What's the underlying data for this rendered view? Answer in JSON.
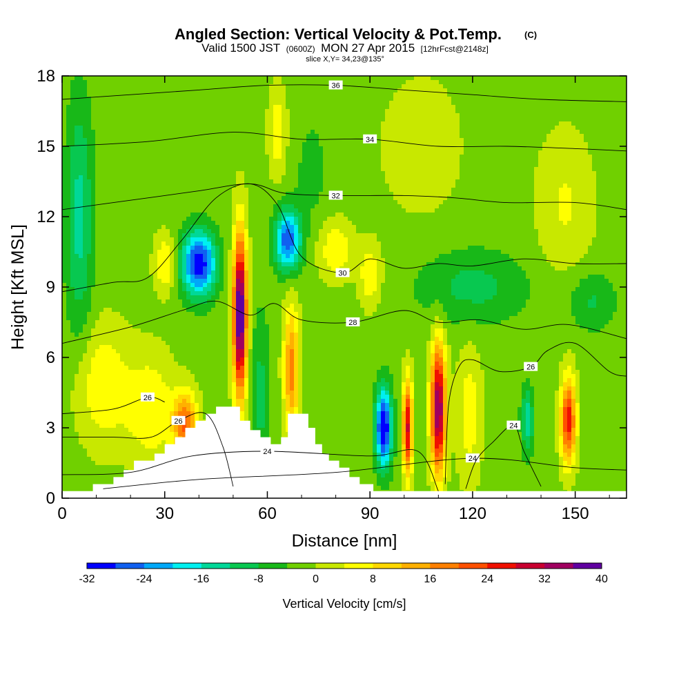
{
  "chart_data": {
    "type": "heatmap",
    "title": "Angled Section: Vertical Velocity & Pot.Temp.",
    "title_mark": "(C)",
    "subtitle_main": "Valid 1500 JST",
    "subtitle_utc": "(0600Z)",
    "subtitle_date": "MON 27 Apr 2015",
    "subtitle_fcst": "[12hrFcst@2148z]",
    "slice_label": "slice X,Y= 34,23@135°",
    "xlabel": "Distance [nm]",
    "ylabel": "Height [Kft MSL]",
    "xlim": [
      0,
      165
    ],
    "ylim": [
      0,
      18
    ],
    "xticks": [
      "0",
      "30",
      "60",
      "90",
      "120",
      "150"
    ],
    "yticks": [
      "0",
      "3",
      "6",
      "9",
      "12",
      "15",
      "18"
    ],
    "colorbar": {
      "label": "Vertical Velocity [cm/s]",
      "tick_labels": [
        "-32",
        "-24",
        "-16",
        "-8",
        "0",
        "8",
        "16",
        "24",
        "32",
        "40"
      ],
      "levels": [
        -32,
        -28,
        -24,
        -20,
        -16,
        -12,
        -8,
        -4,
        0,
        4,
        8,
        12,
        16,
        20,
        24,
        28,
        32,
        36,
        40
      ],
      "colors": [
        "#0000ff",
        "#1060f0",
        "#00a8f8",
        "#00f0f0",
        "#00d898",
        "#08c850",
        "#18b818",
        "#70d000",
        "#c8e800",
        "#ffff00",
        "#ffd800",
        "#ffb000",
        "#ff8000",
        "#ff5000",
        "#f01000",
        "#c80030",
        "#a00060",
        "#6000a0"
      ]
    },
    "theta_contours": [
      {
        "label": "24",
        "pts": [
          [
            12,
            0.4
          ],
          [
            40,
            0.8
          ],
          [
            80,
            1.1
          ],
          [
            120,
            1.7
          ],
          [
            150,
            1.3
          ],
          [
            165,
            1.2
          ]
        ]
      },
      {
        "label": "24",
        "pts": [
          [
            0,
            1.0
          ],
          [
            20,
            1.1
          ],
          [
            38,
            1.8
          ],
          [
            60,
            2.0
          ],
          [
            90,
            1.8
          ],
          [
            104,
            2.0
          ],
          [
            110,
            0.3
          ]
        ]
      },
      {
        "label": "24",
        "pts": [
          [
            118,
            0.4
          ],
          [
            121,
            1.6
          ],
          [
            126,
            2.4
          ],
          [
            132,
            3.1
          ],
          [
            135,
            2.0
          ],
          [
            140,
            0.5
          ]
        ]
      },
      {
        "label": "26",
        "pts": [
          [
            0,
            2.6
          ],
          [
            15,
            2.6
          ],
          [
            26,
            2.6
          ],
          [
            34,
            3.3
          ],
          [
            42,
            3.6
          ],
          [
            47,
            2.2
          ],
          [
            50,
            0.5
          ]
        ]
      },
      {
        "label": "26",
        "pts": [
          [
            112,
            0.6
          ],
          [
            113,
            4.0
          ],
          [
            116,
            5.6
          ],
          [
            120,
            5.9
          ],
          [
            128,
            5.4
          ],
          [
            137,
            5.6
          ],
          [
            142,
            6.3
          ],
          [
            150,
            6.6
          ],
          [
            160,
            5.4
          ],
          [
            165,
            5.2
          ]
        ]
      },
      {
        "label": "26",
        "pts": [
          [
            0,
            3.6
          ],
          [
            15,
            3.8
          ],
          [
            25,
            4.3
          ],
          [
            30,
            4.1
          ]
        ]
      },
      {
        "label": "28",
        "pts": [
          [
            0,
            6.6
          ],
          [
            20,
            7.3
          ],
          [
            35,
            8.0
          ],
          [
            45,
            8.4
          ],
          [
            55,
            7.8
          ],
          [
            62,
            8.3
          ],
          [
            70,
            7.6
          ],
          [
            85,
            7.5
          ],
          [
            100,
            8.0
          ],
          [
            110,
            7.5
          ],
          [
            122,
            7.6
          ],
          [
            135,
            7.2
          ],
          [
            148,
            7.4
          ],
          [
            165,
            6.8
          ]
        ]
      },
      {
        "label": "30",
        "pts": [
          [
            0,
            8.8
          ],
          [
            15,
            9.2
          ],
          [
            25,
            9.4
          ],
          [
            35,
            11.0
          ],
          [
            45,
            12.8
          ],
          [
            55,
            13.4
          ],
          [
            63,
            12.5
          ],
          [
            70,
            10.3
          ],
          [
            82,
            9.6
          ],
          [
            90,
            10.2
          ],
          [
            100,
            9.8
          ],
          [
            110,
            10.0
          ],
          [
            120,
            9.9
          ],
          [
            135,
            10.2
          ],
          [
            150,
            10.0
          ],
          [
            165,
            10.0
          ]
        ]
      },
      {
        "label": "32",
        "pts": [
          [
            0,
            12.3
          ],
          [
            20,
            12.7
          ],
          [
            40,
            13.1
          ],
          [
            55,
            13.4
          ],
          [
            65,
            13.0
          ],
          [
            80,
            12.9
          ],
          [
            100,
            12.9
          ],
          [
            115,
            12.8
          ],
          [
            130,
            12.6
          ],
          [
            150,
            12.6
          ],
          [
            165,
            12.3
          ]
        ]
      },
      {
        "label": "34",
        "pts": [
          [
            0,
            15.0
          ],
          [
            25,
            15.2
          ],
          [
            50,
            15.6
          ],
          [
            70,
            15.3
          ],
          [
            90,
            15.3
          ],
          [
            110,
            15.0
          ],
          [
            130,
            15.0
          ],
          [
            150,
            14.9
          ],
          [
            165,
            14.8
          ]
        ]
      },
      {
        "label": "36",
        "pts": [
          [
            0,
            17.0
          ],
          [
            20,
            17.2
          ],
          [
            40,
            17.4
          ],
          [
            60,
            17.6
          ],
          [
            80,
            17.6
          ],
          [
            100,
            17.4
          ],
          [
            120,
            17.2
          ],
          [
            140,
            17.0
          ],
          [
            165,
            16.9
          ]
        ]
      }
    ]
  }
}
